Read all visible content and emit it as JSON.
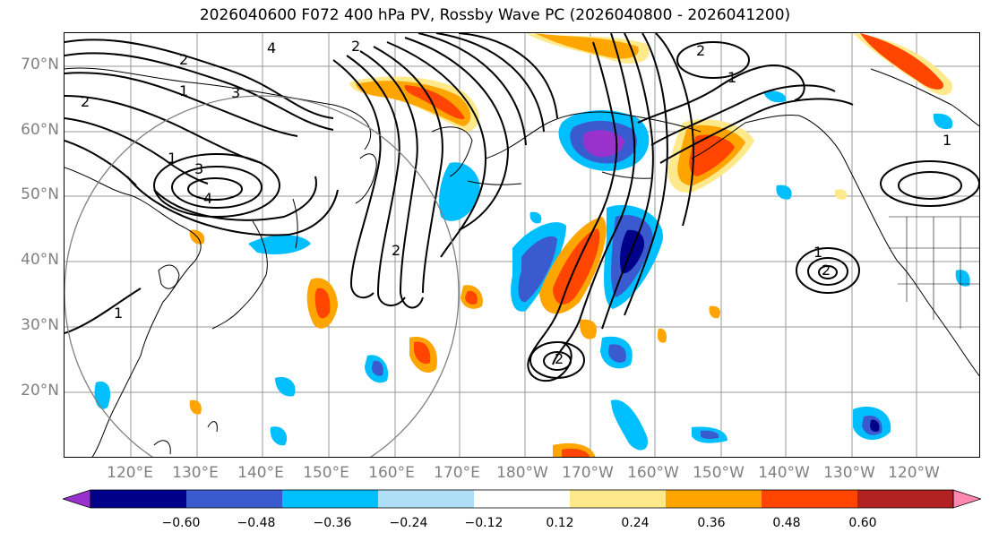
{
  "title": "2026040600 F072 400 hPa PV, Rossby Wave PC (2026040800 - 2026041200)",
  "latitude_labels": [
    "70°N",
    "60°N",
    "50°N",
    "40°N",
    "30°N",
    "20°N"
  ],
  "longitude_labels": [
    "120°E",
    "130°E",
    "140°E",
    "150°E",
    "160°E",
    "170°E",
    "180°W",
    "170°W",
    "160°W",
    "150°W",
    "140°W",
    "130°W",
    "120°W"
  ],
  "contour_labels": [
    "2",
    "2",
    "1",
    "1",
    "3",
    "4",
    "4",
    "3",
    "2",
    "1",
    "2",
    "2",
    "1",
    "1",
    "2",
    "2",
    "1"
  ],
  "colorbar": {
    "tick_labels": [
      "−0.60",
      "−0.48",
      "−0.36",
      "−0.24",
      "−0.12",
      "0.12",
      "0.24",
      "0.36",
      "0.48",
      "0.60"
    ],
    "colors": [
      "#9932CC",
      "#00008B",
      "#3A5BCF",
      "#00BFFF",
      "#AEDFF7",
      "#FFFFFF",
      "#FFE98A",
      "#FFA500",
      "#FF4500",
      "#B22222",
      "#FF88B0"
    ]
  }
}
